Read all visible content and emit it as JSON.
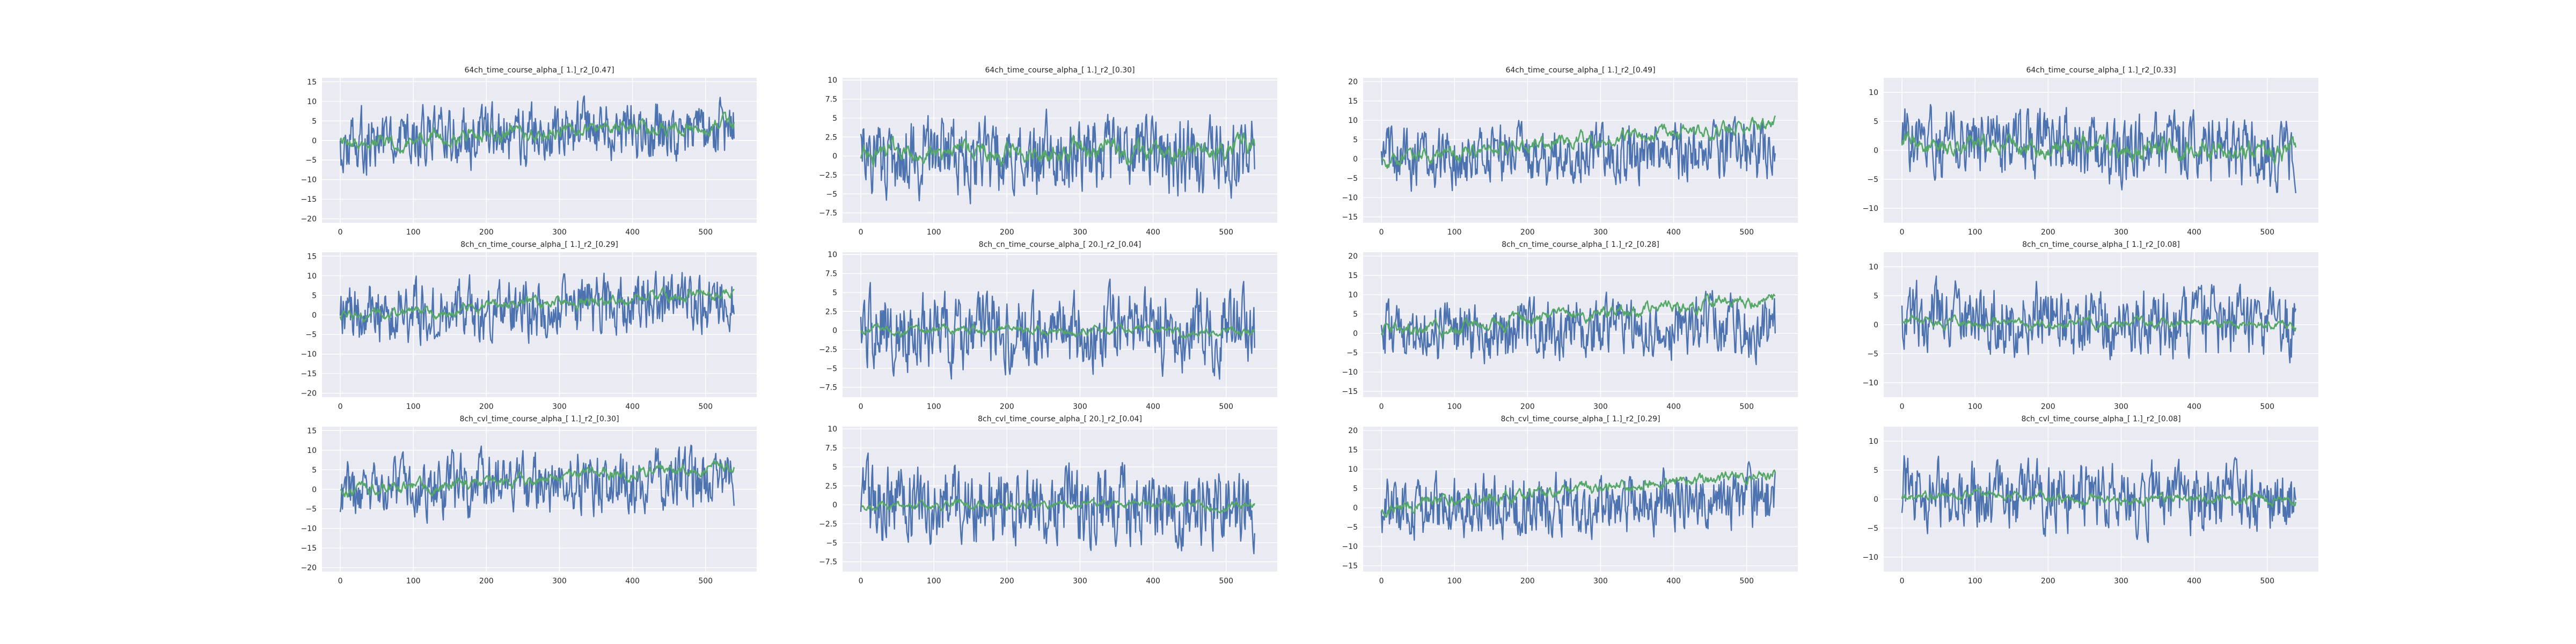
{
  "colors": {
    "plot_bg": "#eaeaf2",
    "grid": "#ffffff",
    "series_1": "#4c72b0",
    "series_2": "#55a868",
    "text": "#262626"
  },
  "chart_data": [
    {
      "type": "line",
      "title": "64ch_time_course_alpha_[ 1.]_r2_[0.47]",
      "ylim": [
        -21,
        16
      ],
      "yticks": [
        15,
        10,
        5,
        0,
        -5,
        -10,
        -15,
        -20
      ],
      "xlim": [
        -25,
        570
      ],
      "xticks": [
        0,
        100,
        200,
        300,
        400,
        500
      ],
      "grid": true,
      "seed": 1,
      "series": [
        {
          "amp": 5.5,
          "trend_start": 0,
          "trend_end": 3,
          "min": -20,
          "max": 14
        },
        {
          "amp": 2,
          "trend_start": -1,
          "trend_end": 4.5,
          "min": -6,
          "max": 15
        }
      ]
    },
    {
      "type": "line",
      "title": "64ch_time_course_alpha_[ 1.]_r2_[0.30]",
      "ylim": [
        -8.8,
        10.3
      ],
      "yticks": [
        10,
        7.5,
        5,
        2.5,
        0,
        -2.5,
        -5,
        -7.5
      ],
      "xlim": [
        -25,
        570
      ],
      "xticks": [
        0,
        100,
        200,
        300,
        400,
        500
      ],
      "grid": true,
      "seed": 2,
      "series": [
        {
          "amp": 3.6,
          "trend_start": 0,
          "trend_end": 0,
          "min": -8,
          "max": 9.6
        },
        {
          "amp": 1.4,
          "trend_start": 0,
          "trend_end": 1,
          "min": -4.5,
          "max": 4
        }
      ]
    },
    {
      "type": "line",
      "title": "64ch_time_course_alpha_[ 1.]_r2_[0.49]",
      "ylim": [
        -16.5,
        21
      ],
      "yticks": [
        20,
        15,
        10,
        5,
        0,
        -5,
        -10,
        -15
      ],
      "xlim": [
        -25,
        570
      ],
      "xticks": [
        0,
        100,
        200,
        300,
        400,
        500
      ],
      "grid": true,
      "seed": 3,
      "series": [
        {
          "amp": 5.5,
          "trend_start": 0,
          "trend_end": 2,
          "min": -16,
          "max": 19
        },
        {
          "amp": 2,
          "trend_start": 0,
          "trend_end": 9,
          "min": -3,
          "max": 16
        }
      ]
    },
    {
      "type": "line",
      "title": "64ch_time_course_alpha_[ 1.]_r2_[0.33]",
      "ylim": [
        -12.5,
        12.5
      ],
      "yticks": [
        10,
        5,
        0,
        -5,
        -10
      ],
      "xlim": [
        -25,
        570
      ],
      "xticks": [
        0,
        100,
        200,
        300,
        400,
        500
      ],
      "grid": true,
      "seed": 4,
      "series": [
        {
          "amp": 4.2,
          "trend_start": 1.5,
          "trend_end": -0.5,
          "min": -11,
          "max": 10
        },
        {
          "amp": 1.8,
          "trend_start": 1,
          "trend_end": 0,
          "min": -4,
          "max": 8
        }
      ]
    },
    {
      "type": "line",
      "title": "8ch_cn_time_course_alpha_[ 1.]_r2_[0.29]",
      "ylim": [
        -21,
        16
      ],
      "yticks": [
        15,
        10,
        5,
        0,
        -5,
        -10,
        -15,
        -20
      ],
      "xlim": [
        -25,
        570
      ],
      "xticks": [
        0,
        100,
        200,
        300,
        400,
        500
      ],
      "grid": true,
      "seed": 5,
      "series": [
        {
          "amp": 5.5,
          "trend_start": 0,
          "trend_end": 3,
          "min": -20,
          "max": 14
        },
        {
          "amp": 1.6,
          "trend_start": -0.5,
          "trend_end": 6,
          "min": -4,
          "max": 9
        }
      ]
    },
    {
      "type": "line",
      "title": "8ch_cn_time_course_alpha_[ 20.]_r2_[0.04]",
      "ylim": [
        -8.8,
        10.3
      ],
      "yticks": [
        10,
        7.5,
        5,
        2.5,
        0,
        -2.5,
        -5,
        -7.5
      ],
      "xlim": [
        -25,
        570
      ],
      "xticks": [
        0,
        100,
        200,
        300,
        400,
        500
      ],
      "grid": true,
      "seed": 6,
      "series": [
        {
          "amp": 3.6,
          "trend_start": 0,
          "trend_end": 0,
          "min": -8,
          "max": 9.6
        },
        {
          "amp": 0.6,
          "trend_start": 0,
          "trend_end": 0,
          "min": -2,
          "max": 2
        }
      ]
    },
    {
      "type": "line",
      "title": "8ch_cn_time_course_alpha_[ 1.]_r2_[0.28]",
      "ylim": [
        -16.5,
        21
      ],
      "yticks": [
        20,
        15,
        10,
        5,
        0,
        -5,
        -10,
        -15
      ],
      "xlim": [
        -25,
        570
      ],
      "xticks": [
        0,
        100,
        200,
        300,
        400,
        500
      ],
      "grid": true,
      "seed": 7,
      "series": [
        {
          "amp": 5.5,
          "trend_start": 0,
          "trend_end": 2,
          "min": -16,
          "max": 19
        },
        {
          "amp": 1.8,
          "trend_start": 0,
          "trend_end": 9,
          "min": -3,
          "max": 12
        }
      ]
    },
    {
      "type": "line",
      "title": "8ch_cn_time_course_alpha_[ 1.]_r2_[0.08]",
      "ylim": [
        -12.5,
        12.5
      ],
      "yticks": [
        10,
        5,
        0,
        -5,
        -10
      ],
      "xlim": [
        -25,
        570
      ],
      "xticks": [
        0,
        100,
        200,
        300,
        400,
        500
      ],
      "grid": true,
      "seed": 8,
      "series": [
        {
          "amp": 4.2,
          "trend_start": 1.5,
          "trend_end": -0.5,
          "min": -11,
          "max": 10
        },
        {
          "amp": 0.9,
          "trend_start": 0.5,
          "trend_end": 0,
          "min": -3,
          "max": 3
        }
      ]
    },
    {
      "type": "line",
      "title": "8ch_cvl_time_course_alpha_[ 1.]_r2_[0.30]",
      "ylim": [
        -21,
        16
      ],
      "yticks": [
        15,
        10,
        5,
        0,
        -5,
        -10,
        -15,
        -20
      ],
      "xlim": [
        -25,
        570
      ],
      "xticks": [
        0,
        100,
        200,
        300,
        400,
        500
      ],
      "grid": true,
      "seed": 9,
      "series": [
        {
          "amp": 5.5,
          "trend_start": 0,
          "trend_end": 3,
          "min": -20,
          "max": 14
        },
        {
          "amp": 1.6,
          "trend_start": -0.5,
          "trend_end": 6,
          "min": -4,
          "max": 9
        }
      ]
    },
    {
      "type": "line",
      "title": "8ch_cvl_time_course_alpha_[ 20.]_r2_[0.04]",
      "ylim": [
        -8.8,
        10.3
      ],
      "yticks": [
        10,
        7.5,
        5,
        2.5,
        0,
        -2.5,
        -5,
        -7.5
      ],
      "xlim": [
        -25,
        570
      ],
      "xticks": [
        0,
        100,
        200,
        300,
        400,
        500
      ],
      "grid": true,
      "seed": 10,
      "series": [
        {
          "amp": 3.6,
          "trend_start": 0,
          "trend_end": 0,
          "min": -8,
          "max": 9.6
        },
        {
          "amp": 0.6,
          "trend_start": 0,
          "trend_end": 0,
          "min": -2,
          "max": 2
        }
      ]
    },
    {
      "type": "line",
      "title": "8ch_cvl_time_course_alpha_[ 1.]_r2_[0.29]",
      "ylim": [
        -16.5,
        21
      ],
      "yticks": [
        20,
        15,
        10,
        5,
        0,
        -5,
        -10,
        -15
      ],
      "xlim": [
        -25,
        570
      ],
      "xticks": [
        0,
        100,
        200,
        300,
        400,
        500
      ],
      "grid": true,
      "seed": 11,
      "series": [
        {
          "amp": 5.5,
          "trend_start": 0,
          "trend_end": 2,
          "min": -16,
          "max": 19
        },
        {
          "amp": 1.8,
          "trend_start": 0,
          "trend_end": 9,
          "min": -3,
          "max": 12
        }
      ]
    },
    {
      "type": "line",
      "title": "8ch_cvl_time_course_alpha_[ 1.]_r2_[0.08]",
      "ylim": [
        -12.5,
        12.5
      ],
      "yticks": [
        10,
        5,
        0,
        -5,
        -10
      ],
      "xlim": [
        -25,
        570
      ],
      "xticks": [
        0,
        100,
        200,
        300,
        400,
        500
      ],
      "grid": true,
      "seed": 12,
      "series": [
        {
          "amp": 4.2,
          "trend_start": 1.5,
          "trend_end": -0.5,
          "min": -11,
          "max": 10
        },
        {
          "amp": 0.9,
          "trend_start": 0.5,
          "trend_end": 0,
          "min": -3,
          "max": 3
        }
      ]
    }
  ]
}
